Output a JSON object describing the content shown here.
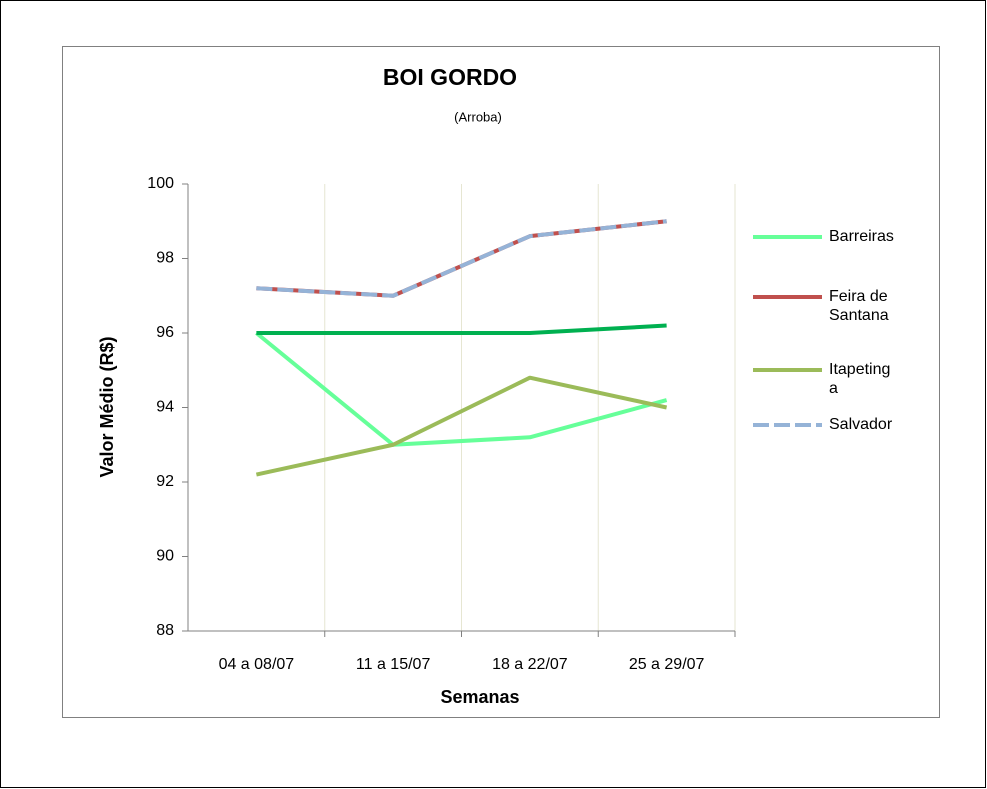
{
  "chart_data": {
    "type": "line",
    "title": "BOI GORDO",
    "subtitle": "(Arroba)",
    "xlabel": "Semanas",
    "ylabel": "Valor Médio (R$)",
    "categories": [
      "04 a 08/07",
      "11 a 15/07",
      "18 a 22/07",
      "25 a 29/07"
    ],
    "series": [
      {
        "name": "Barreiras",
        "color": "#66ff99",
        "values": [
          96,
          93,
          93.2,
          94.2
        ]
      },
      {
        "name": "Feira de Santana",
        "color": "#c0504d",
        "values": [
          97.2,
          97,
          98.6,
          99
        ]
      },
      {
        "name": "Itapetinga",
        "color": "#9bbb59",
        "values": [
          92.2,
          93,
          94.8,
          94
        ]
      },
      {
        "name": "Salvador",
        "color": "#95b3d7",
        "dashed": true,
        "values": [
          97.2,
          97,
          98.6,
          99
        ]
      },
      {
        "color": "#00b050",
        "values": [
          96,
          96,
          96,
          96.2
        ]
      }
    ],
    "ylim": [
      88,
      100
    ],
    "yticks": [
      88,
      90,
      92,
      94,
      96,
      98,
      100
    ],
    "grid": true
  }
}
